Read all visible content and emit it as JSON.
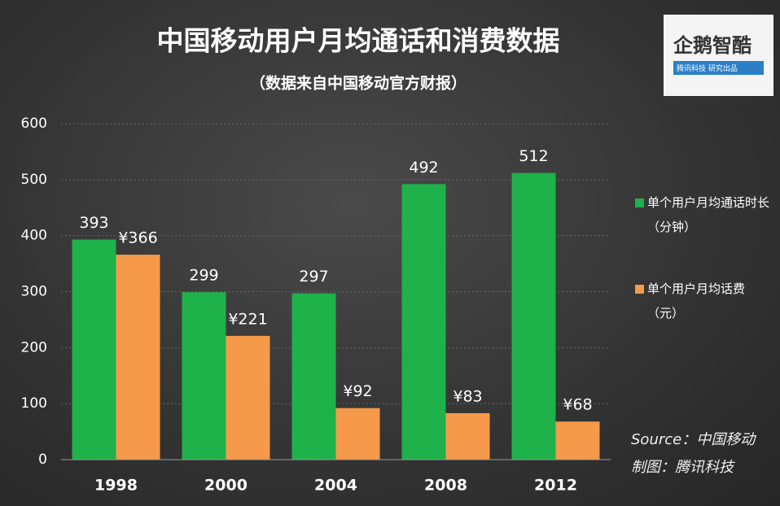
{
  "chart_data": {
    "type": "bar",
    "title": "中国移动用户月均通话和消费数据",
    "subtitle": "（数据来自中国移动官方财报）",
    "categories": [
      "1998",
      "2000",
      "2004",
      "2008",
      "2012"
    ],
    "series": [
      {
        "name": "单个用户月均通话时长（分钟）",
        "color": "#1fb14a",
        "values": [
          393,
          299,
          297,
          492,
          512
        ]
      },
      {
        "name": "单个用户月均话费（元）",
        "color": "#f59a4a",
        "values": [
          366,
          221,
          92,
          83,
          68
        ],
        "value_labels": [
          "¥366",
          "¥221",
          "¥92",
          "¥83",
          "¥68"
        ]
      }
    ],
    "ylim": [
      0,
      600
    ],
    "yticks": [
      0,
      100,
      200,
      300,
      400,
      500,
      600
    ],
    "grid": true,
    "source": "Source：中国移动",
    "credit": "制图：腾讯科技",
    "logo": {
      "title": "企鹅智酷",
      "tagline": "腾讯科技 研究出品"
    }
  }
}
